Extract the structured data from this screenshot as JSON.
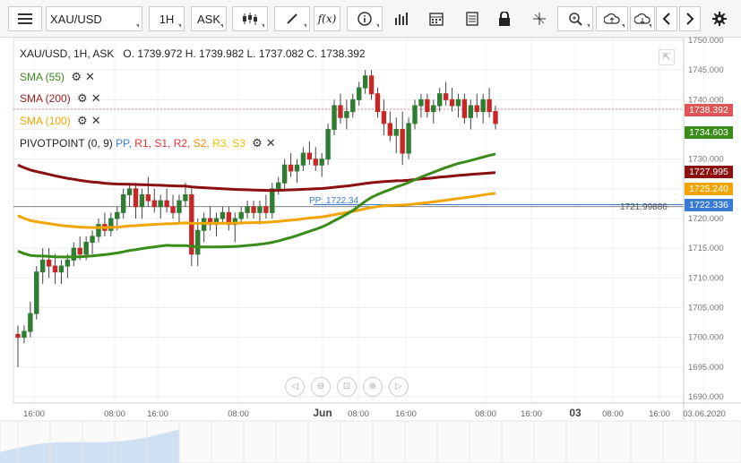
{
  "toolbar": {
    "symbol": "XAU/USD",
    "interval": "1H",
    "price_type": "ASK",
    "buttons": [
      "menu-icon",
      "candles-icon",
      "draw-icon",
      "fx-icon",
      "info-icon",
      "volume-icon",
      "calendar-icon",
      "news-icon",
      "lock-icon",
      "crosshair-icon",
      "zoom-icon",
      "upload-icon",
      "download-icon",
      "chevron-left-icon",
      "chevron-right-icon",
      "gear-icon"
    ],
    "fx_label": "f(x)"
  },
  "info": {
    "symbol_line": "XAU/USD, 1H, ASK",
    "ohlc": "O. 1739.972 H. 1739.982 L. 1737.082 C. 1738.392"
  },
  "indicators": [
    {
      "label": "SMA (55)",
      "color": "#3a8c1a"
    },
    {
      "label": "SMA (200)",
      "color": "#9b1c1c"
    },
    {
      "label": "SMA (100)",
      "color": "#f2a500"
    }
  ],
  "pivot": {
    "label": "PIVOTPOINT (0, 9)",
    "items": [
      {
        "label": "PP,",
        "color": "#3a7bd5"
      },
      {
        "label": "R1,",
        "color": "#d33"
      },
      {
        "label": "S1,",
        "color": "#d33"
      },
      {
        "label": "R2,",
        "color": "#d33"
      },
      {
        "label": "S2,",
        "color": "#f28a00"
      },
      {
        "label": "R3,",
        "color": "#e8c400"
      },
      {
        "label": "S3",
        "color": "#e8c400"
      }
    ],
    "pp_label": "PP: 1722.34",
    "level_label": "1721.99886"
  },
  "price_tags": {
    "last": "1738.392",
    "sma55": "1734.603",
    "sma200": "1727.995",
    "sma100": "1725.240",
    "pp": "1722.336"
  },
  "colors": {
    "up": "#2e7d32",
    "down": "#c62828",
    "sma55": "#3a8c1a",
    "sma200": "#8b1010",
    "sma100": "#f2a500",
    "pp": "#3a7bd5"
  },
  "chart_data": {
    "type": "candlestick",
    "symbol": "XAU/USD",
    "interval": "1H",
    "y_ticks": [
      "1750.000",
      "1745.000",
      "1740.000",
      "1735.000",
      "1730.000",
      "1725.000",
      "1720.000",
      "1715.000",
      "1710.000",
      "1705.000",
      "1700.000",
      "1695.000",
      "1690.000"
    ],
    "ylim": [
      1690,
      1750
    ],
    "x_ticks": [
      "16:00",
      "08:00",
      "16:00",
      "08:00",
      "Jun",
      "08:00",
      "16:00",
      "08:00",
      "16:00",
      "03",
      "08:00",
      "16:00",
      "03.06.2020"
    ],
    "candles": [
      [
        1700.5,
        1702,
        1695,
        1700
      ],
      [
        1700,
        1702,
        1699,
        1701
      ],
      [
        1701,
        1706,
        1700,
        1704
      ],
      [
        1704,
        1712,
        1703,
        1711
      ],
      [
        1711,
        1715,
        1709,
        1713
      ],
      [
        1713,
        1715,
        1710,
        1712
      ],
      [
        1712,
        1714,
        1709,
        1711
      ],
      [
        1711,
        1713,
        1709,
        1712
      ],
      [
        1712,
        1714,
        1710,
        1713
      ],
      [
        1713,
        1716,
        1712,
        1715
      ],
      [
        1715,
        1717,
        1713,
        1714
      ],
      [
        1714,
        1717,
        1713,
        1716
      ],
      [
        1716,
        1718,
        1714,
        1717
      ],
      [
        1717,
        1720,
        1716,
        1719
      ],
      [
        1719,
        1721,
        1717,
        1718
      ],
      [
        1718,
        1721,
        1717,
        1720
      ],
      [
        1720,
        1722,
        1718,
        1721
      ],
      [
        1721,
        1725,
        1720,
        1724
      ],
      [
        1724,
        1726,
        1722,
        1725
      ],
      [
        1725,
        1726,
        1720,
        1722
      ],
      [
        1722,
        1725,
        1720,
        1724
      ],
      [
        1724,
        1727,
        1722,
        1723
      ],
      [
        1723,
        1725,
        1721,
        1722
      ],
      [
        1722,
        1724,
        1720,
        1723
      ],
      [
        1723,
        1725,
        1721,
        1722
      ],
      [
        1722,
        1724,
        1720,
        1721
      ],
      [
        1721,
        1724,
        1719,
        1723
      ],
      [
        1723,
        1726,
        1722,
        1724
      ],
      [
        1724,
        1725,
        1712,
        1714
      ],
      [
        1714,
        1720,
        1712,
        1718
      ],
      [
        1718,
        1721,
        1716,
        1720
      ],
      [
        1720,
        1722,
        1718,
        1719
      ],
      [
        1719,
        1721,
        1717,
        1720
      ],
      [
        1720,
        1722,
        1719,
        1721
      ],
      [
        1721,
        1722,
        1718,
        1719
      ],
      [
        1719,
        1721,
        1716,
        1720
      ],
      [
        1720,
        1722,
        1719,
        1721
      ],
      [
        1721,
        1723,
        1720,
        1722
      ],
      [
        1722,
        1723,
        1720,
        1721
      ],
      [
        1721,
        1723,
        1719,
        1722
      ],
      [
        1722,
        1724,
        1720,
        1721
      ],
      [
        1721,
        1726,
        1720,
        1725
      ],
      [
        1725,
        1727,
        1724,
        1726
      ],
      [
        1726,
        1730,
        1725,
        1729
      ],
      [
        1729,
        1731,
        1727,
        1728
      ],
      [
        1728,
        1730,
        1726,
        1729
      ],
      [
        1729,
        1732,
        1728,
        1731
      ],
      [
        1731,
        1733,
        1729,
        1730
      ],
      [
        1730,
        1732,
        1728,
        1729
      ],
      [
        1729,
        1731,
        1727,
        1730
      ],
      [
        1730,
        1736,
        1729,
        1735
      ],
      [
        1735,
        1740,
        1734,
        1739
      ],
      [
        1739,
        1741,
        1736,
        1737
      ],
      [
        1737,
        1740,
        1735,
        1738
      ],
      [
        1738,
        1741,
        1737,
        1740
      ],
      [
        1740,
        1743,
        1739,
        1742
      ],
      [
        1742,
        1745,
        1741,
        1744
      ],
      [
        1744,
        1745,
        1740,
        1741
      ],
      [
        1741,
        1742,
        1737,
        1738
      ],
      [
        1738,
        1740,
        1734,
        1736
      ],
      [
        1736,
        1738,
        1733,
        1734
      ],
      [
        1734,
        1737,
        1731,
        1735
      ],
      [
        1735,
        1738,
        1729,
        1731
      ],
      [
        1731,
        1737,
        1730,
        1736
      ],
      [
        1736,
        1740,
        1735,
        1739
      ],
      [
        1739,
        1741,
        1737,
        1740
      ],
      [
        1740,
        1741,
        1737,
        1738
      ],
      [
        1738,
        1740,
        1736,
        1739
      ],
      [
        1739,
        1742,
        1738,
        1741
      ],
      [
        1741,
        1743,
        1739,
        1740
      ],
      [
        1740,
        1742,
        1738,
        1739
      ],
      [
        1739,
        1741,
        1737,
        1740
      ],
      [
        1740,
        1741,
        1736,
        1737
      ],
      [
        1737,
        1740,
        1735,
        1739
      ],
      [
        1739,
        1741,
        1737,
        1738
      ],
      [
        1738,
        1741,
        1736,
        1740
      ],
      [
        1740,
        1742,
        1737,
        1738
      ],
      [
        1738,
        1739,
        1735,
        1736
      ]
    ]
  }
}
